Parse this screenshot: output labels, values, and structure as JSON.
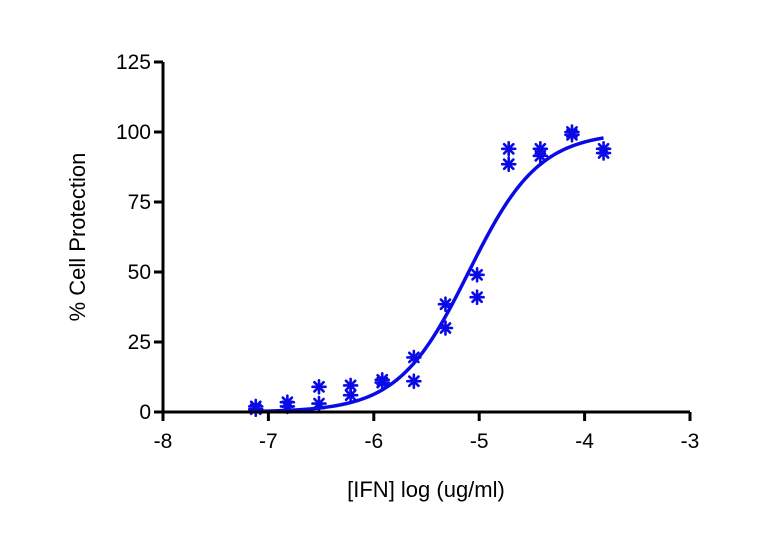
{
  "chart_data": {
    "type": "scatter",
    "xlabel": "[IFN] log (ug/ml)",
    "ylabel": "% Cell Protection",
    "xlim": [
      -8,
      -3
    ],
    "ylim": [
      0,
      125
    ],
    "xticks": [
      -8,
      -7,
      -6,
      -5,
      -4,
      -3
    ],
    "yticks": [
      0,
      25,
      50,
      75,
      100,
      125
    ],
    "xtick_labels": [
      "-8",
      "-7",
      "-6",
      "-5",
      "-4",
      "-3"
    ],
    "ytick_labels": [
      "0",
      "25",
      "50",
      "75",
      "100",
      "125"
    ],
    "grid": false,
    "color": "#0a0ae6",
    "points": [
      {
        "x": -7.12,
        "y": 2
      },
      {
        "x": -7.12,
        "y": 1
      },
      {
        "x": -6.82,
        "y": 3.5
      },
      {
        "x": -6.82,
        "y": 2
      },
      {
        "x": -6.52,
        "y": 9
      },
      {
        "x": -6.52,
        "y": 3
      },
      {
        "x": -6.22,
        "y": 9.5
      },
      {
        "x": -6.22,
        "y": 6
      },
      {
        "x": -5.92,
        "y": 11.5
      },
      {
        "x": -5.92,
        "y": 10.5
      },
      {
        "x": -5.62,
        "y": 19.5
      },
      {
        "x": -5.62,
        "y": 11
      },
      {
        "x": -5.32,
        "y": 38.5
      },
      {
        "x": -5.32,
        "y": 30
      },
      {
        "x": -5.02,
        "y": 49
      },
      {
        "x": -5.02,
        "y": 41
      },
      {
        "x": -4.72,
        "y": 94
      },
      {
        "x": -4.72,
        "y": 88.5
      },
      {
        "x": -4.42,
        "y": 94
      },
      {
        "x": -4.42,
        "y": 91.5
      },
      {
        "x": -4.12,
        "y": 100
      },
      {
        "x": -4.12,
        "y": 99
      },
      {
        "x": -3.82,
        "y": 94
      },
      {
        "x": -3.82,
        "y": 92.5
      }
    ],
    "fit": {
      "model": "sigmoidal dose-response",
      "bottom": 0,
      "top": 100,
      "logEC50": -5.1,
      "hill": 1.3,
      "x_range": [
        -7.12,
        -3.82
      ]
    }
  }
}
